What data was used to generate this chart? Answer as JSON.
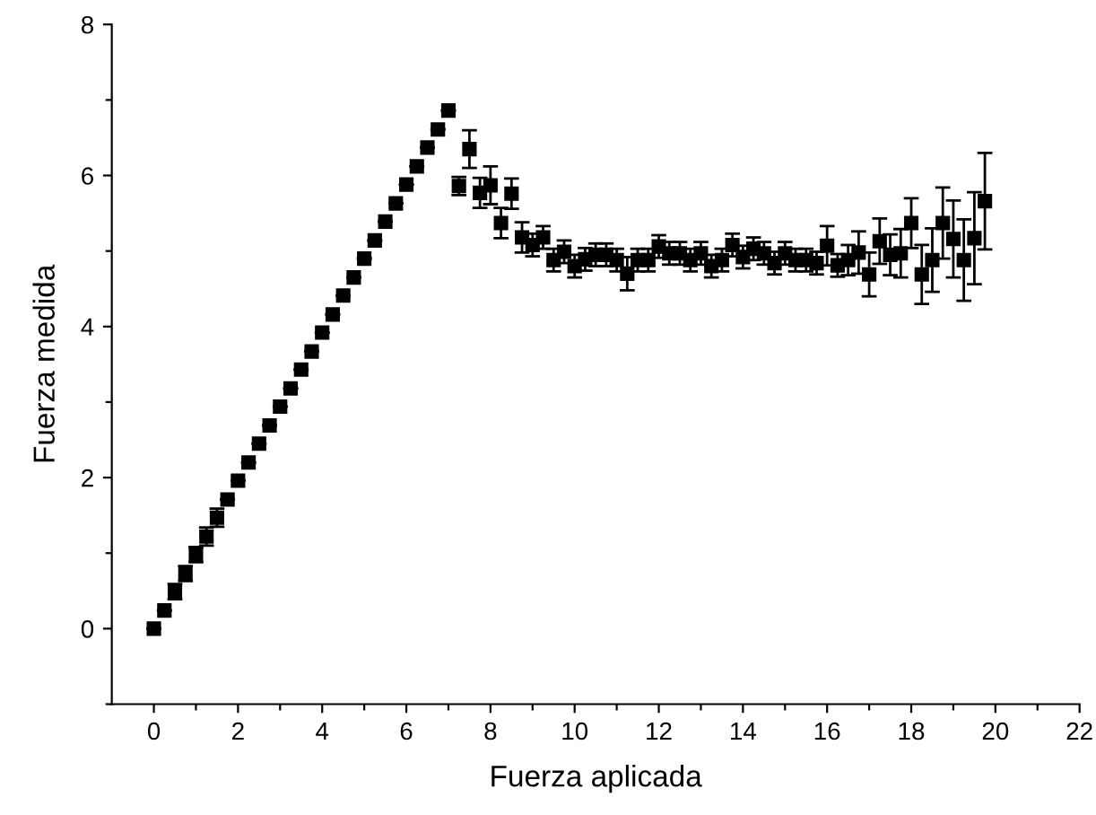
{
  "chart_data": {
    "type": "scatter",
    "xlabel": "Fuerza aplicada",
    "ylabel": "Fuerza medida",
    "marker": "square",
    "grid": false,
    "xlim": [
      -1,
      22
    ],
    "ylim": [
      -1,
      8
    ],
    "xticks": [
      0,
      {
        "value": 1,
        "label": null
      },
      2,
      {
        "value": 3,
        "label": null
      },
      4,
      {
        "value": 5,
        "label": null
      },
      6,
      {
        "value": 7,
        "label": null
      },
      8,
      {
        "value": 9,
        "label": null
      },
      10,
      {
        "value": 11,
        "label": null
      },
      12,
      {
        "value": 13,
        "label": null
      },
      14,
      {
        "value": 15,
        "label": null
      },
      16,
      {
        "value": 17,
        "label": null
      },
      18,
      {
        "value": 19,
        "label": null
      },
      20,
      {
        "value": 21,
        "label": null
      },
      22
    ],
    "yticks": [
      {
        "value": -1,
        "label": null
      },
      0,
      {
        "value": 1,
        "label": null
      },
      2,
      {
        "value": 3,
        "label": null
      },
      4,
      {
        "value": 5,
        "label": null
      },
      6,
      {
        "value": 7,
        "label": null
      },
      8
    ],
    "series": [
      {
        "color": "#000000",
        "x": [
          0,
          0.25,
          0.5,
          0.75,
          1,
          1.25,
          1.5,
          1.75,
          2,
          2.25,
          2.5,
          2.75,
          3,
          3.25,
          3.5,
          3.75,
          4,
          4.25,
          4.5,
          4.75,
          5,
          5.25,
          5.5,
          5.75,
          6,
          6.25,
          6.5,
          6.75,
          7,
          7.25,
          7.5,
          7.75,
          8,
          8.25,
          8.5,
          8.75,
          9,
          9.25,
          9.5,
          9.75,
          10,
          10.25,
          10.5,
          10.75,
          11,
          11.25,
          11.5,
          11.75,
          12,
          12.25,
          12.5,
          12.75,
          13,
          13.25,
          13.5,
          13.75,
          14,
          14.25,
          14.5,
          14.75,
          15,
          15.25,
          15.5,
          15.75,
          16,
          16.25,
          16.5,
          16.75,
          17,
          17.25,
          17.5,
          17.75,
          18,
          18.25,
          18.5,
          18.75,
          19,
          19.25,
          19.5,
          19.75
        ],
        "values": [
          0,
          0.24,
          0.49,
          0.73,
          0.98,
          1.22,
          1.47,
          1.71,
          1.96,
          2.2,
          2.45,
          2.69,
          2.94,
          3.18,
          3.43,
          3.67,
          3.92,
          4.16,
          4.41,
          4.65,
          4.9,
          5.14,
          5.39,
          5.63,
          5.88,
          6.12,
          6.37,
          6.61,
          6.86,
          5.86,
          6.35,
          5.77,
          5.87,
          5.37,
          5.76,
          5.18,
          5.08,
          5.18,
          4.88,
          4.99,
          4.8,
          4.89,
          4.95,
          4.95,
          4.88,
          4.7,
          4.88,
          4.88,
          5.06,
          4.97,
          4.97,
          4.88,
          4.97,
          4.8,
          4.88,
          5.08,
          4.92,
          5.03,
          4.97,
          4.84,
          4.97,
          4.88,
          4.88,
          4.84,
          5.07,
          4.81,
          4.88,
          4.98,
          4.69,
          5.13,
          4.95,
          4.97,
          5.37,
          4.69,
          4.88,
          5.37,
          5.16,
          4.88,
          5.17,
          5.66
        ],
        "errors": [
          null,
          null,
          0.1,
          0.1,
          0.1,
          0.12,
          0.12,
          null,
          null,
          null,
          null,
          null,
          null,
          null,
          null,
          null,
          null,
          null,
          null,
          null,
          null,
          null,
          null,
          null,
          null,
          null,
          null,
          null,
          null,
          0.12,
          0.25,
          0.2,
          0.25,
          0.2,
          0.2,
          0.2,
          0.15,
          0.15,
          0.15,
          0.15,
          0.15,
          0.15,
          0.15,
          0.15,
          0.15,
          0.22,
          0.15,
          0.15,
          0.15,
          0.15,
          0.15,
          0.15,
          0.15,
          0.15,
          0.15,
          0.15,
          0.15,
          0.15,
          0.15,
          0.15,
          0.15,
          0.15,
          0.15,
          0.15,
          0.26,
          0.15,
          0.2,
          0.28,
          0.29,
          0.3,
          0.27,
          0.32,
          0.33,
          0.39,
          0.42,
          0.47,
          0.51,
          0.54,
          0.61,
          0.64
        ]
      }
    ]
  }
}
